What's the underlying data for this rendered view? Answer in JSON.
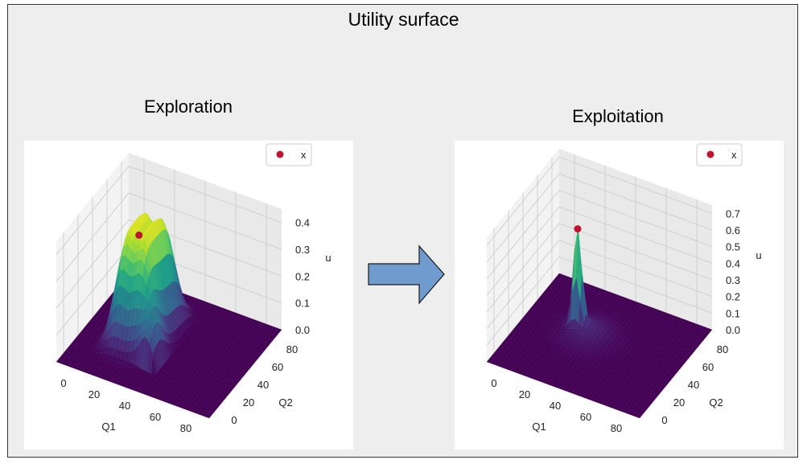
{
  "title": "Utility surface",
  "colors": {
    "background": "#eeeeee",
    "panel": "#ffffff",
    "arrow_fill": "#6f9bcf",
    "arrow_stroke": "#1a1a1a",
    "marker": "#c0142d",
    "surface_low": "#440154",
    "surface_high": "#fde725"
  },
  "arrow": {
    "icon": "right-arrow-icon"
  },
  "chart_data": [
    {
      "type": "surface3d",
      "title": "Exploration",
      "xlabel": "Q1",
      "ylabel": "Q2",
      "zlabel": "u",
      "xticks": [
        "0",
        "20",
        "40",
        "60",
        "80"
      ],
      "yticks": [
        "0",
        "20",
        "40",
        "60",
        "80"
      ],
      "zticks": [
        "0.0",
        "0.1",
        "0.2",
        "0.3",
        "0.4"
      ],
      "xlim": [
        -10,
        90
      ],
      "ylim": [
        -10,
        90
      ],
      "zlim": [
        0,
        0.45
      ],
      "colormap": "viridis",
      "legend": {
        "position": "top-right",
        "label": "x",
        "marker_color": "#c0142d"
      },
      "marker": {
        "x": 18,
        "y": 45,
        "z": 0.35
      },
      "peak_u": 0.42
    },
    {
      "type": "surface3d",
      "title": "Exploitation",
      "xlabel": "Q1",
      "ylabel": "Q2",
      "zlabel": "u",
      "xticks": [
        "0",
        "20",
        "40",
        "60",
        "80"
      ],
      "yticks": [
        "0",
        "20",
        "40",
        "60",
        "80"
      ],
      "zticks": [
        "0.0",
        "0.1",
        "0.2",
        "0.3",
        "0.4",
        "0.5",
        "0.6",
        "0.7"
      ],
      "xlim": [
        -10,
        90
      ],
      "ylim": [
        -10,
        90
      ],
      "zlim": [
        0,
        0.75
      ],
      "colormap": "viridis",
      "legend": {
        "position": "top-right",
        "label": "x",
        "marker_color": "#c0142d"
      },
      "marker": {
        "x": 22,
        "y": 48,
        "z": 0.6
      },
      "peak_u": 0.6
    }
  ]
}
